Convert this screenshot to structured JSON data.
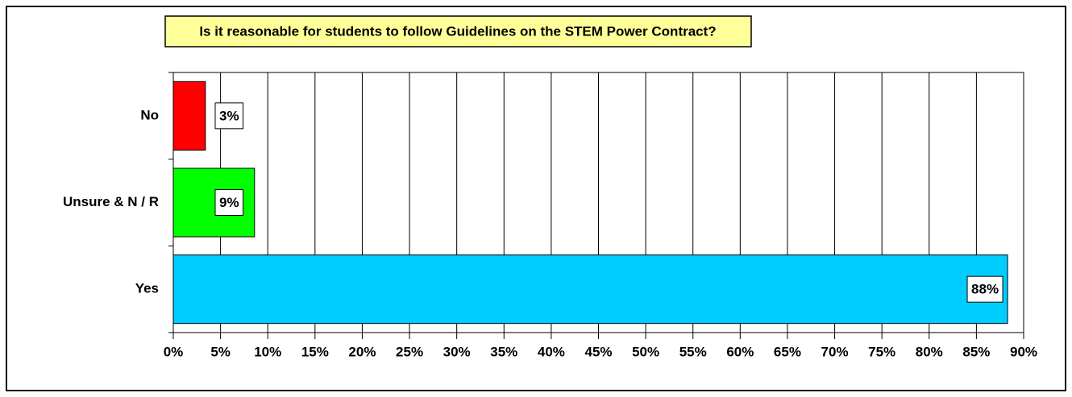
{
  "chart_data": {
    "type": "hbar",
    "title": "Is it reasonable for students to follow Guidelines on the STEM Power Contract?",
    "categories": [
      "No",
      "Unsure & N / R",
      "Yes"
    ],
    "values": [
      3.4,
      8.6,
      88.3
    ],
    "value_labels": [
      "3%",
      "9%",
      "88%"
    ],
    "colors": [
      "#ff0000",
      "#00ff00",
      "#00ccff"
    ],
    "xlim": [
      0,
      90
    ],
    "xticks": [
      {
        "value": 0,
        "label": "0%"
      },
      {
        "value": 5,
        "label": "5%"
      },
      {
        "value": 10,
        "label": "10%"
      },
      {
        "value": 15,
        "label": "15%"
      },
      {
        "value": 20,
        "label": "20%"
      },
      {
        "value": 25,
        "label": "25%"
      },
      {
        "value": 30,
        "label": "30%"
      },
      {
        "value": 35,
        "label": "35%"
      },
      {
        "value": 40,
        "label": "40%"
      },
      {
        "value": 45,
        "label": "45%"
      },
      {
        "value": 50,
        "label": "50%"
      },
      {
        "value": 55,
        "label": "55%"
      },
      {
        "value": 60,
        "label": "60%"
      },
      {
        "value": 65,
        "label": "65%"
      },
      {
        "value": 70,
        "label": "70%"
      },
      {
        "value": 75,
        "label": "75%"
      },
      {
        "value": 80,
        "label": "80%"
      },
      {
        "value": 85,
        "label": "85%"
      },
      {
        "value": 90,
        "label": "90%"
      }
    ],
    "grid": true
  }
}
